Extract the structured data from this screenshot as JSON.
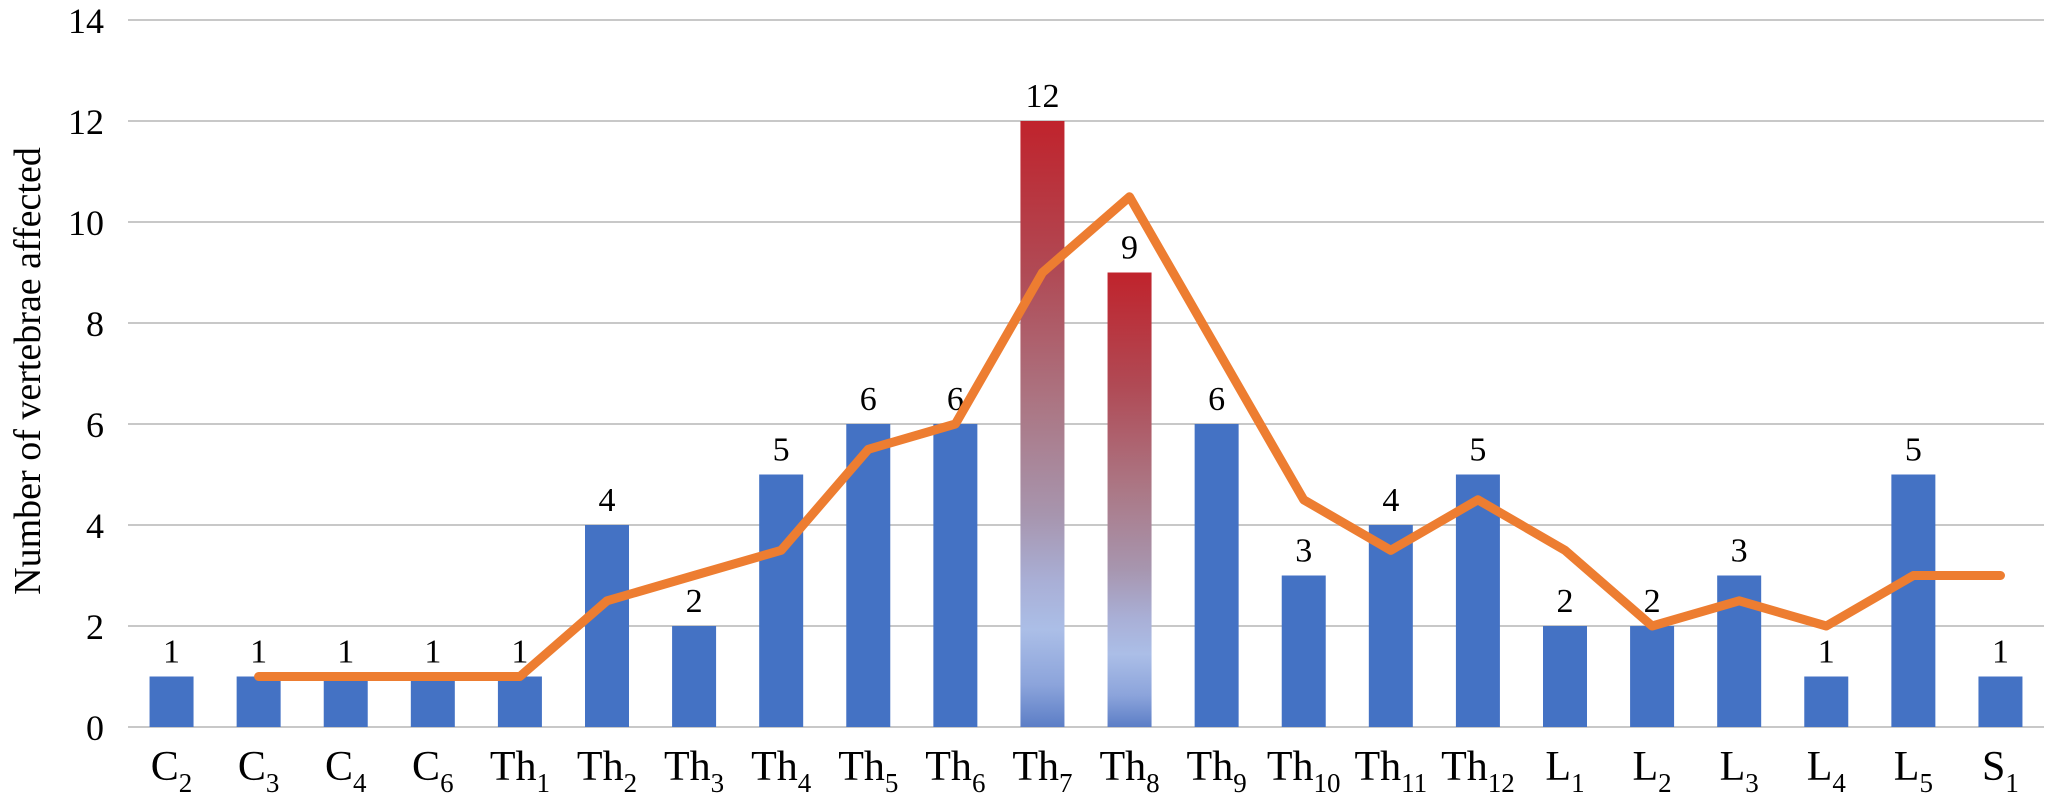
{
  "chart_data": {
    "type": "bar",
    "title": "",
    "xlabel": "",
    "ylabel": "Number of vertebrae affected",
    "ylim": [
      0,
      14
    ],
    "ytick_step": 2,
    "grid": true,
    "legend": "none",
    "categories": [
      "C2",
      "C3",
      "C4",
      "C6",
      "Th1",
      "Th2",
      "Th3",
      "Th4",
      "Th5",
      "Th6",
      "Th7",
      "Th8",
      "Th9",
      "Th10",
      "Th11",
      "Th12",
      "L1",
      "L2",
      "L3",
      "L4",
      "L5",
      "S1"
    ],
    "categories_rich": [
      {
        "base": "C",
        "sub": "2"
      },
      {
        "base": "C",
        "sub": "3"
      },
      {
        "base": "C",
        "sub": "4"
      },
      {
        "base": "C",
        "sub": "6"
      },
      {
        "base": "Th",
        "sub": "1"
      },
      {
        "base": "Th",
        "sub": "2"
      },
      {
        "base": "Th",
        "sub": "3"
      },
      {
        "base": "Th",
        "sub": "4"
      },
      {
        "base": "Th",
        "sub": "5"
      },
      {
        "base": "Th",
        "sub": "6"
      },
      {
        "base": "Th",
        "sub": "7"
      },
      {
        "base": "Th",
        "sub": "8"
      },
      {
        "base": "Th",
        "sub": "9"
      },
      {
        "base": "Th",
        "sub": "10"
      },
      {
        "base": "Th",
        "sub": "11"
      },
      {
        "base": "Th",
        "sub": "12"
      },
      {
        "base": "L",
        "sub": "1"
      },
      {
        "base": "L",
        "sub": "2"
      },
      {
        "base": "L",
        "sub": "3"
      },
      {
        "base": "L",
        "sub": "4"
      },
      {
        "base": "L",
        "sub": "5"
      },
      {
        "base": "S",
        "sub": "1"
      }
    ],
    "bars": {
      "values": [
        1,
        1,
        1,
        1,
        1,
        4,
        2,
        5,
        6,
        6,
        12,
        9,
        6,
        3,
        4,
        5,
        2,
        2,
        3,
        1,
        5,
        1
      ],
      "color": "#4472C4",
      "data_labels": true,
      "highlight_indices": [
        10,
        11
      ],
      "highlight_gradient": [
        {
          "offset": "0%",
          "color": "#C0232C"
        },
        {
          "offset": "25%",
          "color": "#B04A55"
        },
        {
          "offset": "48%",
          "color": "#AB7886"
        },
        {
          "offset": "65%",
          "color": "#A795AE"
        },
        {
          "offset": "76%",
          "color": "#A9AFD6"
        },
        {
          "offset": "84%",
          "color": "#ABBEE7"
        },
        {
          "offset": "93%",
          "color": "#8CA4DB"
        },
        {
          "offset": "100%",
          "color": "#5C7EC6"
        }
      ]
    },
    "line": {
      "values": [
        null,
        1,
        1,
        1,
        1,
        2.5,
        3,
        3.5,
        5.5,
        6,
        9,
        10.5,
        7.5,
        4.5,
        3.5,
        4.5,
        3.5,
        2,
        2.5,
        2,
        3,
        3
      ],
      "color": "#ED7D31"
    },
    "colors": {
      "gridline": "#C8C8C8",
      "text": "#000000"
    }
  }
}
